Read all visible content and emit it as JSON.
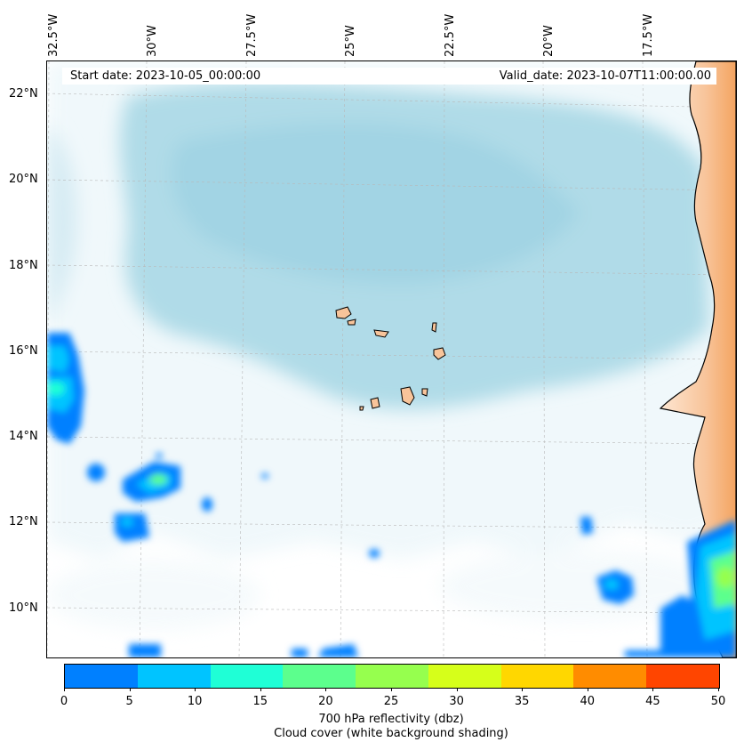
{
  "header": {
    "start_date": "Start date: 2023-10-05_00:00:00",
    "valid_date": "Valid_date: 2023-10-07T11:00:00.00"
  },
  "axes": {
    "longitude_ticks": [
      "32.5°W",
      "30°W",
      "27.5°W",
      "25°W",
      "22.5°W",
      "20°W",
      "17.5°W"
    ],
    "latitude_ticks": [
      "22°N",
      "20°N",
      "18°N",
      "16°N",
      "14°N",
      "12°N",
      "10°N"
    ]
  },
  "colorbar": {
    "ticks": [
      "0",
      "5",
      "10",
      "15",
      "20",
      "25",
      "30",
      "35",
      "40",
      "45",
      "50"
    ],
    "colors": [
      "#0080ff",
      "#00c4ff",
      "#1fffd6",
      "#5cff8d",
      "#96ff4e",
      "#d6ff1a",
      "#ffd700",
      "#ff8c00",
      "#ff4500"
    ],
    "label_line1": "700 hPa reflectivity (dbz)",
    "label_line2": "Cloud cover (white background shading)"
  },
  "colors": {
    "cloud": "#a9d8e6",
    "land": "#f4a460",
    "ocean": "#ffffff"
  }
}
